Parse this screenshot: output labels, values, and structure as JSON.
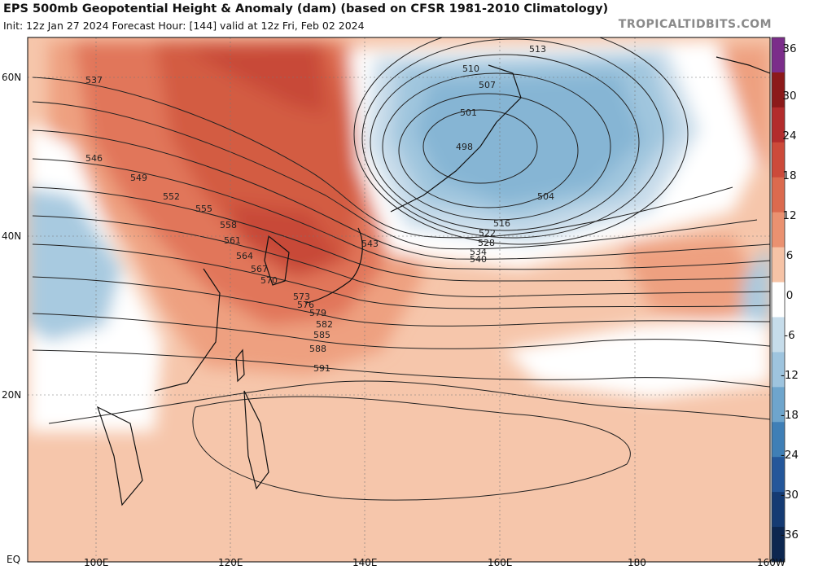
{
  "header": {
    "title": "EPS 500mb Geopotential Height & Anomaly (dam) (based on CFSR 1981-2010 Climatology)",
    "subtitle": "Init: 12z Jan 27 2024   Forecast Hour: [144]   valid at 12z Fri, Feb 02 2024",
    "brand": "TROPICALTIDBITS.COM"
  },
  "map": {
    "lat_labels": [
      "60N",
      "40N",
      "20N",
      "EQ"
    ],
    "lon_labels": [
      "100E",
      "120E",
      "140E",
      "160E",
      "180",
      "160W"
    ],
    "contour_labels": [
      "513",
      "510",
      "507",
      "504",
      "501",
      "498",
      "516",
      "522",
      "528",
      "534",
      "540",
      "543",
      "546",
      "549",
      "552",
      "555",
      "558",
      "561",
      "564",
      "567",
      "570",
      "573",
      "576",
      "579",
      "582",
      "585",
      "588",
      "591",
      "537"
    ]
  },
  "colorbar": {
    "labels": [
      "36",
      "30",
      "24",
      "18",
      "12",
      "6",
      "0",
      "-6",
      "-12",
      "-18",
      "-24",
      "-30",
      "-36"
    ],
    "colors": [
      "#7b2d8a",
      "#8c1a1a",
      "#b32c2c",
      "#cc4a3a",
      "#db6a4e",
      "#ea9170",
      "#f6c3a6",
      "#ffffff",
      "#c6dcea",
      "#9ec4de",
      "#6ea5cc",
      "#3f7fb6",
      "#24579a",
      "#153b73",
      "#0d2750"
    ]
  }
}
